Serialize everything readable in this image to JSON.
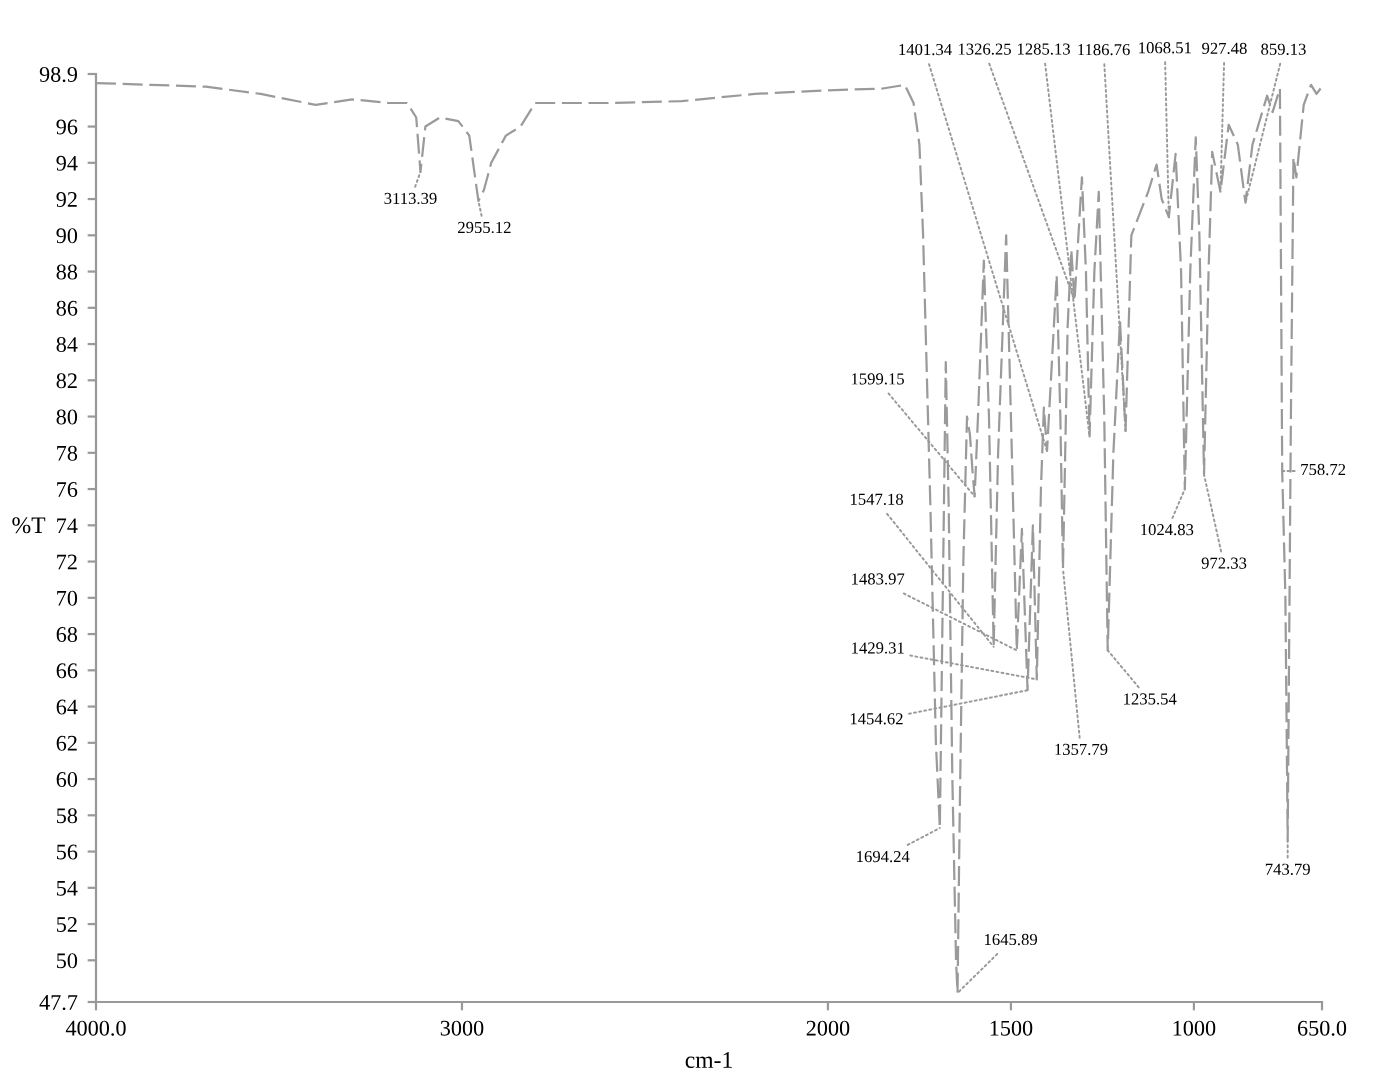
{
  "chart_data": {
    "type": "line",
    "xlabel": "cm-1",
    "ylabel": "%T",
    "xlim": [
      4000,
      650
    ],
    "xticks": [
      {
        "value": 4000,
        "label": "4000.0"
      },
      3000,
      2000,
      1500,
      1000,
      {
        "value": 650,
        "label": "650.0"
      }
    ],
    "ylim": [
      47.7,
      98.9
    ],
    "yticks": [
      47.7,
      50,
      52,
      54,
      56,
      58,
      60,
      62,
      64,
      66,
      68,
      70,
      72,
      74,
      76,
      78,
      80,
      82,
      84,
      86,
      88,
      90,
      92,
      94,
      96,
      98.9
    ],
    "grid": false,
    "legend": false,
    "marker": "none",
    "line_style": "dashed",
    "series": [
      {
        "color": "#9a9a9a",
        "x": [
          4000,
          3850,
          3700,
          3550,
          3400,
          3300,
          3200,
          3150,
          3125,
          3113.39,
          3100,
          3060,
          3010,
          2980,
          2955.12,
          2940,
          2920,
          2880,
          2840,
          2800,
          2600,
          2400,
          2200,
          2000,
          1850,
          1790,
          1766,
          1750,
          1740,
          1720,
          1705,
          1694.24,
          1685,
          1678,
          1670,
          1660,
          1650,
          1645.89,
          1640,
          1630,
          1620,
          1612,
          1605,
          1599.15,
          1590,
          1574,
          1560,
          1547.18,
          1535,
          1513,
          1500,
          1483.97,
          1470,
          1454.62,
          1440,
          1429.31,
          1418,
          1410,
          1401.34,
          1375,
          1365,
          1357.79,
          1345,
          1335,
          1326.25,
          1306,
          1295,
          1285.13,
          1272,
          1260,
          1245,
          1235.54,
          1220,
          1202,
          1186.76,
          1171,
          1125,
          1102,
          1088,
          1068.51,
          1050,
          1035,
          1024.83,
          1010,
          995,
          985,
          972.33,
          960,
          950,
          927.48,
          905,
          880,
          859.13,
          840,
          800,
          785,
          765,
          758.72,
          750,
          743.79,
          735,
          728,
          720,
          700,
          680,
          665,
          650
        ],
        "values": [
          98.4,
          98.3,
          98.2,
          97.8,
          97.2,
          97.5,
          97.3,
          97.3,
          96.5,
          93.5,
          96.0,
          96.5,
          96.3,
          95.5,
          91.9,
          92.5,
          94.0,
          95.5,
          96.0,
          97.3,
          97.3,
          97.4,
          97.8,
          98.0,
          98.1,
          98.3,
          97.3,
          95,
          90,
          75,
          62,
          57.3,
          72,
          83,
          75,
          60,
          50,
          48.2,
          58,
          72,
          80,
          79,
          77,
          75.6,
          80,
          88.6,
          80,
          67.3,
          78,
          90,
          80,
          67.1,
          73.8,
          64.9,
          74,
          65.5,
          76,
          80.5,
          78.1,
          87.8,
          80,
          71.6,
          85,
          89.2,
          86.4,
          93.2,
          88,
          78.9,
          88,
          92.4,
          80,
          67.1,
          78,
          85.3,
          79.2,
          90,
          92.4,
          93.9,
          92,
          91.0,
          94.5,
          88,
          76,
          88,
          95.4,
          90,
          76.8,
          88,
          94.6,
          92.4,
          96.1,
          95,
          91.8,
          95,
          97.7,
          96.8,
          98.1,
          77,
          70,
          56.6,
          80,
          94.3,
          93.2,
          97.2,
          98.3,
          97.8,
          98.2
        ]
      }
    ],
    "annotations": [
      {
        "text": "3113.39",
        "x": 3113.39,
        "y": 93.5
      },
      {
        "text": "2955.12",
        "x": 2955.12,
        "y": 91.9
      },
      {
        "text": "1694.24",
        "x": 1694.24,
        "y": 57.3
      },
      {
        "text": "1645.89",
        "x": 1645.89,
        "y": 48.2
      },
      {
        "text": "1599.15",
        "x": 1599.15,
        "y": 75.6
      },
      {
        "text": "1547.18",
        "x": 1547.18,
        "y": 67.3
      },
      {
        "text": "1483.97",
        "x": 1483.97,
        "y": 67.1
      },
      {
        "text": "1454.62",
        "x": 1454.62,
        "y": 64.9
      },
      {
        "text": "1429.31",
        "x": 1429.31,
        "y": 65.5
      },
      {
        "text": "1401.34",
        "x": 1401.34,
        "y": 78.1
      },
      {
        "text": "1357.79",
        "x": 1357.79,
        "y": 71.6
      },
      {
        "text": "1326.25",
        "x": 1326.25,
        "y": 86.4
      },
      {
        "text": "1285.13",
        "x": 1285.13,
        "y": 78.9
      },
      {
        "text": "1235.54",
        "x": 1235.54,
        "y": 67.1
      },
      {
        "text": "1186.76",
        "x": 1186.76,
        "y": 79.2
      },
      {
        "text": "1068.51",
        "x": 1068.51,
        "y": 91.0
      },
      {
        "text": "1024.83",
        "x": 1024.83,
        "y": 76
      },
      {
        "text": "972.33",
        "x": 972.33,
        "y": 76.8
      },
      {
        "text": "927.48",
        "x": 927.48,
        "y": 92.4
      },
      {
        "text": "859.13",
        "x": 859.13,
        "y": 91.8
      },
      {
        "text": "758.72",
        "x": 758.72,
        "y": 77
      },
      {
        "text": "743.79",
        "x": 743.79,
        "y": 56.6
      }
    ]
  }
}
